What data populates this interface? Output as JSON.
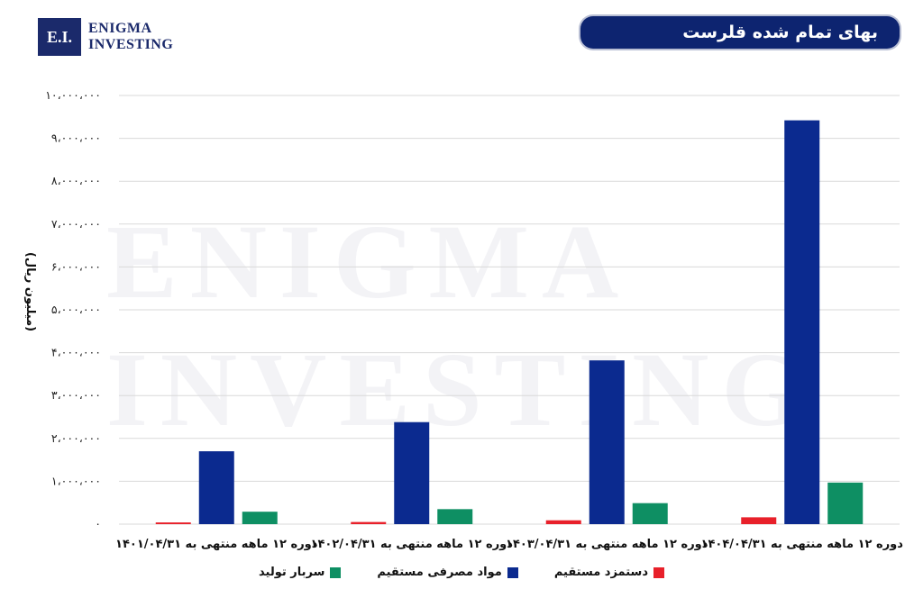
{
  "logo": {
    "mark": "E.I.",
    "line1": "ENIGMA",
    "line2": "INVESTING"
  },
  "watermark": {
    "line1": "ENIGMA",
    "line2": "INVESTING"
  },
  "header": {
    "title": "بهای تمام شده قلرست"
  },
  "colors": {
    "direct_labor": "#e8202a",
    "materials": "#0b2a8f",
    "overhead": "#0e8f63",
    "title_bg": "#0d2470"
  },
  "chart_data": {
    "type": "bar",
    "ylabel": "(میلیون ریال)",
    "ylim": [
      0,
      10000000
    ],
    "yticks": [
      "۰",
      "۱،۰۰۰،۰۰۰",
      "۲،۰۰۰،۰۰۰",
      "۳،۰۰۰،۰۰۰",
      "۴،۰۰۰،۰۰۰",
      "۵،۰۰۰،۰۰۰",
      "۶،۰۰۰،۰۰۰",
      "۷،۰۰۰،۰۰۰",
      "۸،۰۰۰،۰۰۰",
      "۹،۰۰۰،۰۰۰",
      "۱۰،۰۰۰،۰۰۰"
    ],
    "categories": [
      "دوره ۱۲ ماهه منتهی به ۱۴۰۱/۰۴/۳۱",
      "دوره ۱۲ ماهه منتهی به ۱۴۰۲/۰۴/۳۱",
      "دوره ۱۲ ماهه منتهی به ۱۴۰۳/۰۴/۳۱",
      "دوره ۱۲ ماهه منتهی به ۱۴۰۴/۰۴/۳۱"
    ],
    "series": [
      {
        "name": "دستمزد مستقیم",
        "color": "#e8202a",
        "values": [
          40000,
          50000,
          90000,
          160000
        ]
      },
      {
        "name": "مواد مصرفی مستقیم",
        "color": "#0b2a8f",
        "values": [
          1700000,
          2380000,
          3820000,
          9420000
        ]
      },
      {
        "name": "سربار تولید",
        "color": "#0e8f63",
        "values": [
          290000,
          350000,
          490000,
          970000
        ]
      }
    ],
    "grid": true,
    "legend_position": "bottom"
  }
}
